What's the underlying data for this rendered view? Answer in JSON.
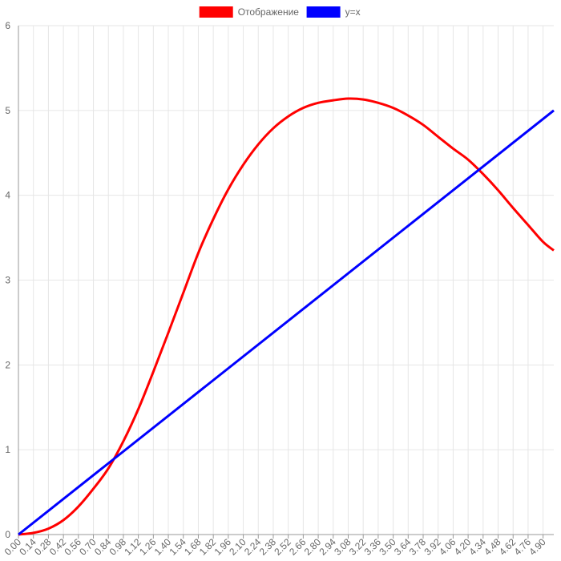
{
  "chart_data": {
    "type": "line",
    "title": "",
    "xlabel": "",
    "ylabel": "",
    "xlim": [
      0,
      5.0
    ],
    "ylim": [
      0,
      6
    ],
    "x_step": 0.02,
    "y_ticks": [
      0,
      1,
      2,
      3,
      4,
      5,
      6
    ],
    "x_tick_labels": [
      "0.00",
      "0.14",
      "0.28",
      "0.42",
      "0.56",
      "0.70",
      "0.84",
      "0.98",
      "1.12",
      "1.26",
      "1.40",
      "1.54",
      "1.68",
      "1.82",
      "1.96",
      "2.10",
      "2.24",
      "2.38",
      "2.52",
      "2.66",
      "2.80",
      "2.94",
      "3.08",
      "3.22",
      "3.36",
      "3.50",
      "3.64",
      "3.78",
      "3.92",
      "4.06",
      "4.20",
      "4.34",
      "4.48",
      "4.62",
      "4.76",
      "4.90"
    ],
    "grid": true,
    "legend_position": "top-center",
    "series": [
      {
        "name": "Отображение",
        "color": "#ff0000",
        "points": [
          [
            0,
            0
          ],
          [
            0.14,
            0.02
          ],
          [
            0.28,
            0.07
          ],
          [
            0.42,
            0.17
          ],
          [
            0.56,
            0.33
          ],
          [
            0.7,
            0.54
          ],
          [
            0.84,
            0.78
          ],
          [
            0.98,
            1.1
          ],
          [
            1.12,
            1.48
          ],
          [
            1.26,
            1.92
          ],
          [
            1.4,
            2.38
          ],
          [
            1.54,
            2.85
          ],
          [
            1.68,
            3.32
          ],
          [
            1.82,
            3.72
          ],
          [
            1.96,
            4.07
          ],
          [
            2.1,
            4.36
          ],
          [
            2.24,
            4.6
          ],
          [
            2.38,
            4.79
          ],
          [
            2.52,
            4.93
          ],
          [
            2.66,
            5.03
          ],
          [
            2.8,
            5.09
          ],
          [
            2.94,
            5.12
          ],
          [
            3.08,
            5.14
          ],
          [
            3.22,
            5.13
          ],
          [
            3.36,
            5.09
          ],
          [
            3.5,
            5.03
          ],
          [
            3.64,
            4.94
          ],
          [
            3.78,
            4.83
          ],
          [
            3.92,
            4.69
          ],
          [
            4.06,
            4.55
          ],
          [
            4.2,
            4.42
          ],
          [
            4.34,
            4.25
          ],
          [
            4.48,
            4.06
          ],
          [
            4.62,
            3.85
          ],
          [
            4.76,
            3.65
          ],
          [
            4.9,
            3.45
          ],
          [
            5.0,
            3.35
          ]
        ]
      },
      {
        "name": "y=x",
        "color": "#0000ff",
        "points": [
          [
            0,
            0
          ],
          [
            5.0,
            5.0
          ]
        ]
      }
    ]
  }
}
